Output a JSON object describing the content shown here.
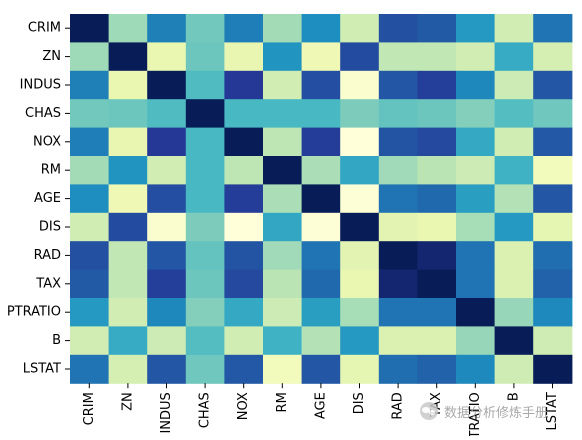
{
  "chart_data": {
    "type": "heatmap",
    "colormap": "YlGnBu",
    "x_labels": [
      "CRIM",
      "ZN",
      "INDUS",
      "CHAS",
      "NOX",
      "RM",
      "AGE",
      "DIS",
      "RAD",
      "TAX",
      "PTRATIO",
      "B",
      "LSTAT"
    ],
    "y_labels": [
      "CRIM",
      "ZN",
      "INDUS",
      "CHAS",
      "NOX",
      "RM",
      "AGE",
      "DIS",
      "RAD",
      "TAX",
      "PTRATIO",
      "B",
      "LSTAT"
    ],
    "value_range": [
      -0.77,
      1.0
    ],
    "values": [
      [
        1.0,
        -0.2,
        0.41,
        -0.06,
        0.42,
        -0.22,
        0.35,
        -0.38,
        0.63,
        0.58,
        0.29,
        -0.39,
        0.46
      ],
      [
        -0.2,
        1.0,
        -0.53,
        -0.04,
        -0.52,
        0.31,
        -0.57,
        0.66,
        -0.31,
        -0.31,
        -0.39,
        0.18,
        -0.41
      ],
      [
        0.41,
        -0.53,
        1.0,
        0.06,
        0.76,
        -0.39,
        0.64,
        -0.71,
        0.6,
        0.72,
        0.38,
        -0.36,
        0.6
      ],
      [
        -0.06,
        -0.04,
        0.06,
        1.0,
        0.09,
        0.09,
        0.09,
        -0.1,
        -0.01,
        -0.04,
        -0.12,
        0.05,
        -0.05
      ],
      [
        0.42,
        -0.52,
        0.76,
        0.09,
        1.0,
        -0.3,
        0.73,
        -0.77,
        0.61,
        0.67,
        0.19,
        -0.38,
        0.59
      ],
      [
        -0.22,
        0.31,
        -0.39,
        0.09,
        -0.3,
        1.0,
        -0.24,
        0.21,
        -0.21,
        -0.29,
        -0.36,
        0.13,
        -0.61
      ],
      [
        0.35,
        -0.57,
        0.64,
        0.09,
        0.73,
        -0.24,
        1.0,
        -0.75,
        0.46,
        0.51,
        0.26,
        -0.27,
        0.6
      ],
      [
        -0.38,
        0.66,
        -0.71,
        -0.1,
        -0.77,
        0.21,
        -0.75,
        1.0,
        -0.49,
        -0.53,
        -0.23,
        0.29,
        -0.5
      ],
      [
        0.63,
        -0.31,
        0.6,
        -0.01,
        0.61,
        -0.21,
        0.46,
        -0.49,
        1.0,
        0.91,
        0.46,
        -0.44,
        0.49
      ],
      [
        0.58,
        -0.31,
        0.72,
        -0.04,
        0.67,
        -0.29,
        0.51,
        -0.53,
        0.91,
        1.0,
        0.46,
        -0.44,
        0.54
      ],
      [
        0.29,
        -0.39,
        0.38,
        -0.12,
        0.19,
        -0.36,
        0.26,
        -0.23,
        0.46,
        0.46,
        1.0,
        -0.18,
        0.37
      ],
      [
        -0.39,
        0.18,
        -0.36,
        0.05,
        -0.38,
        0.13,
        -0.27,
        0.29,
        -0.44,
        -0.44,
        -0.18,
        1.0,
        -0.37
      ],
      [
        0.46,
        -0.41,
        0.6,
        -0.05,
        0.59,
        -0.61,
        0.6,
        -0.5,
        0.49,
        0.54,
        0.37,
        -0.37,
        1.0
      ]
    ],
    "title": "",
    "xlabel": "",
    "ylabel": "",
    "grid": false,
    "legend": "none"
  },
  "watermark": {
    "text": "数据分析修炼手册",
    "icon": "wechat-icon"
  }
}
